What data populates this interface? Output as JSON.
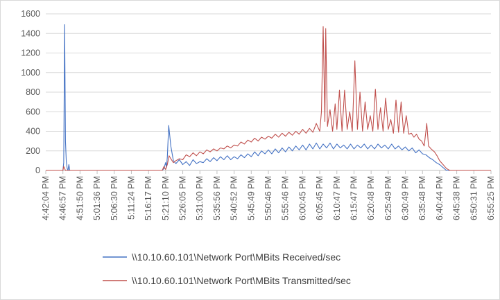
{
  "chart_data": {
    "type": "line",
    "title": "",
    "xlabel": "",
    "ylabel": "",
    "ylim": [
      0,
      1600
    ],
    "yticks": [
      0,
      200,
      400,
      600,
      800,
      1000,
      1200,
      1400,
      1600
    ],
    "grid": "horizontal",
    "legend_position": "bottom",
    "x_tick_labels": [
      "4:42:04 PM",
      "4:46:57 PM",
      "4:51:50 PM",
      "5:01:36 PM",
      "5:06:30 PM",
      "5:11:24 PM",
      "5:16:17 PM",
      "5:21:10 PM",
      "5:26:05 PM",
      "5:31:00 PM",
      "5:35:56 PM",
      "5:40:52 PM",
      "5:45:49 PM",
      "5:50:46 PM",
      "5:55:46 PM",
      "6:00:45 PM",
      "6:05:45 PM",
      "6:10:47 PM",
      "6:15:47 PM",
      "6:20:48 PM",
      "6:25:49 PM",
      "6:30:49 PM",
      "6:35:48 PM",
      "6:40:44 PM",
      "6:45:38 PM",
      "6:50:31 PM",
      "6:55:25 PM"
    ],
    "series": [
      {
        "name": "\\\\10.10.60.101\\Network Port\\MBits Received/sec",
        "color": "#4472c4",
        "points": [
          [
            0,
            0
          ],
          [
            1.0,
            0
          ],
          [
            1.05,
            80
          ],
          [
            1.1,
            1490
          ],
          [
            1.15,
            300
          ],
          [
            1.2,
            90
          ],
          [
            1.25,
            20
          ],
          [
            1.3,
            0
          ],
          [
            1.35,
            60
          ],
          [
            1.4,
            0
          ],
          [
            1.5,
            0
          ],
          [
            2,
            0
          ],
          [
            3,
            0
          ],
          [
            4,
            0
          ],
          [
            5,
            0
          ],
          [
            6,
            0
          ],
          [
            6.8,
            0
          ],
          [
            6.9,
            20
          ],
          [
            7.0,
            80
          ],
          [
            7.05,
            30
          ],
          [
            7.1,
            140
          ],
          [
            7.18,
            460
          ],
          [
            7.3,
            250
          ],
          [
            7.45,
            100
          ],
          [
            7.6,
            70
          ],
          [
            7.8,
            110
          ],
          [
            8.0,
            60
          ],
          [
            8.2,
            90
          ],
          [
            8.4,
            50
          ],
          [
            8.6,
            110
          ],
          [
            8.8,
            70
          ],
          [
            9.0,
            90
          ],
          [
            9.2,
            80
          ],
          [
            9.4,
            120
          ],
          [
            9.6,
            90
          ],
          [
            9.8,
            130
          ],
          [
            10.0,
            100
          ],
          [
            10.2,
            140
          ],
          [
            10.4,
            110
          ],
          [
            10.6,
            150
          ],
          [
            10.8,
            110
          ],
          [
            11.0,
            140
          ],
          [
            11.2,
            120
          ],
          [
            11.4,
            160
          ],
          [
            11.6,
            130
          ],
          [
            11.8,
            170
          ],
          [
            12.0,
            140
          ],
          [
            12.2,
            190
          ],
          [
            12.4,
            150
          ],
          [
            12.6,
            200
          ],
          [
            12.8,
            170
          ],
          [
            13.0,
            210
          ],
          [
            13.2,
            170
          ],
          [
            13.4,
            220
          ],
          [
            13.6,
            180
          ],
          [
            13.8,
            230
          ],
          [
            14.0,
            190
          ],
          [
            14.2,
            240
          ],
          [
            14.4,
            200
          ],
          [
            14.6,
            250
          ],
          [
            14.8,
            210
          ],
          [
            15.0,
            260
          ],
          [
            15.2,
            210
          ],
          [
            15.4,
            270
          ],
          [
            15.6,
            220
          ],
          [
            15.8,
            280
          ],
          [
            16.0,
            220
          ],
          [
            16.2,
            270
          ],
          [
            16.4,
            230
          ],
          [
            16.6,
            280
          ],
          [
            16.8,
            220
          ],
          [
            17.0,
            270
          ],
          [
            17.2,
            230
          ],
          [
            17.4,
            260
          ],
          [
            17.6,
            220
          ],
          [
            17.8,
            270
          ],
          [
            18.0,
            220
          ],
          [
            18.2,
            260
          ],
          [
            18.4,
            230
          ],
          [
            18.6,
            270
          ],
          [
            18.8,
            220
          ],
          [
            19.0,
            260
          ],
          [
            19.2,
            220
          ],
          [
            19.4,
            270
          ],
          [
            19.6,
            230
          ],
          [
            19.8,
            260
          ],
          [
            20.0,
            220
          ],
          [
            20.2,
            270
          ],
          [
            20.4,
            220
          ],
          [
            20.6,
            250
          ],
          [
            20.8,
            210
          ],
          [
            21.0,
            240
          ],
          [
            21.2,
            200
          ],
          [
            21.4,
            230
          ],
          [
            21.6,
            180
          ],
          [
            21.8,
            210
          ],
          [
            22.0,
            170
          ],
          [
            22.2,
            160
          ],
          [
            22.4,
            130
          ],
          [
            22.6,
            110
          ],
          [
            22.8,
            80
          ],
          [
            23.0,
            60
          ],
          [
            23.2,
            30
          ],
          [
            23.4,
            0
          ],
          [
            23.6,
            0
          ],
          [
            24,
            0
          ],
          [
            25,
            0
          ],
          [
            26,
            0
          ]
        ]
      },
      {
        "name": "\\\\10.10.60.101\\Network Port\\MBits Transmitted/sec",
        "color": "#c0504d",
        "points": [
          [
            0,
            0
          ],
          [
            1.0,
            0
          ],
          [
            1.05,
            40
          ],
          [
            1.1,
            20
          ],
          [
            1.15,
            0
          ],
          [
            2,
            0
          ],
          [
            3,
            0
          ],
          [
            4,
            0
          ],
          [
            5,
            0
          ],
          [
            6,
            0
          ],
          [
            6.8,
            0
          ],
          [
            6.9,
            40
          ],
          [
            7.0,
            10
          ],
          [
            7.1,
            60
          ],
          [
            7.2,
            150
          ],
          [
            7.3,
            120
          ],
          [
            7.45,
            80
          ],
          [
            7.6,
            100
          ],
          [
            7.8,
            120
          ],
          [
            8.0,
            110
          ],
          [
            8.2,
            160
          ],
          [
            8.4,
            140
          ],
          [
            8.6,
            180
          ],
          [
            8.8,
            150
          ],
          [
            9.0,
            190
          ],
          [
            9.2,
            170
          ],
          [
            9.4,
            210
          ],
          [
            9.6,
            190
          ],
          [
            9.8,
            220
          ],
          [
            10.0,
            200
          ],
          [
            10.2,
            230
          ],
          [
            10.4,
            220
          ],
          [
            10.6,
            250
          ],
          [
            10.8,
            230
          ],
          [
            11.0,
            260
          ],
          [
            11.2,
            250
          ],
          [
            11.4,
            290
          ],
          [
            11.6,
            270
          ],
          [
            11.8,
            310
          ],
          [
            12.0,
            290
          ],
          [
            12.2,
            330
          ],
          [
            12.4,
            300
          ],
          [
            12.6,
            340
          ],
          [
            12.8,
            320
          ],
          [
            13.0,
            350
          ],
          [
            13.2,
            330
          ],
          [
            13.4,
            370
          ],
          [
            13.6,
            340
          ],
          [
            13.8,
            380
          ],
          [
            14.0,
            350
          ],
          [
            14.2,
            390
          ],
          [
            14.4,
            360
          ],
          [
            14.6,
            400
          ],
          [
            14.8,
            370
          ],
          [
            15.0,
            420
          ],
          [
            15.2,
            380
          ],
          [
            15.4,
            430
          ],
          [
            15.6,
            390
          ],
          [
            15.8,
            480
          ],
          [
            16.0,
            400
          ],
          [
            16.1,
            600
          ],
          [
            16.2,
            1470
          ],
          [
            16.3,
            500
          ],
          [
            16.35,
            1450
          ],
          [
            16.45,
            450
          ],
          [
            16.6,
            620
          ],
          [
            16.75,
            400
          ],
          [
            16.9,
            680
          ],
          [
            17.0,
            420
          ],
          [
            17.15,
            820
          ],
          [
            17.3,
            400
          ],
          [
            17.45,
            820
          ],
          [
            17.6,
            420
          ],
          [
            17.75,
            600
          ],
          [
            17.9,
            400
          ],
          [
            18.05,
            1120
          ],
          [
            18.2,
            420
          ],
          [
            18.35,
            800
          ],
          [
            18.5,
            400
          ],
          [
            18.65,
            700
          ],
          [
            18.8,
            420
          ],
          [
            18.95,
            560
          ],
          [
            19.1,
            400
          ],
          [
            19.25,
            830
          ],
          [
            19.4,
            420
          ],
          [
            19.55,
            640
          ],
          [
            19.7,
            400
          ],
          [
            19.85,
            740
          ],
          [
            20.0,
            420
          ],
          [
            20.15,
            520
          ],
          [
            20.3,
            380
          ],
          [
            20.45,
            720
          ],
          [
            20.6,
            390
          ],
          [
            20.75,
            700
          ],
          [
            20.9,
            380
          ],
          [
            21.05,
            560
          ],
          [
            21.2,
            370
          ],
          [
            21.35,
            380
          ],
          [
            21.5,
            340
          ],
          [
            21.65,
            370
          ],
          [
            21.8,
            320
          ],
          [
            21.95,
            300
          ],
          [
            22.1,
            250
          ],
          [
            22.25,
            480
          ],
          [
            22.35,
            250
          ],
          [
            22.5,
            220
          ],
          [
            22.7,
            190
          ],
          [
            22.85,
            150
          ],
          [
            23.0,
            100
          ],
          [
            23.2,
            60
          ],
          [
            23.4,
            20
          ],
          [
            23.6,
            0
          ],
          [
            24,
            0
          ],
          [
            25,
            0
          ],
          [
            26,
            0
          ]
        ]
      }
    ]
  }
}
